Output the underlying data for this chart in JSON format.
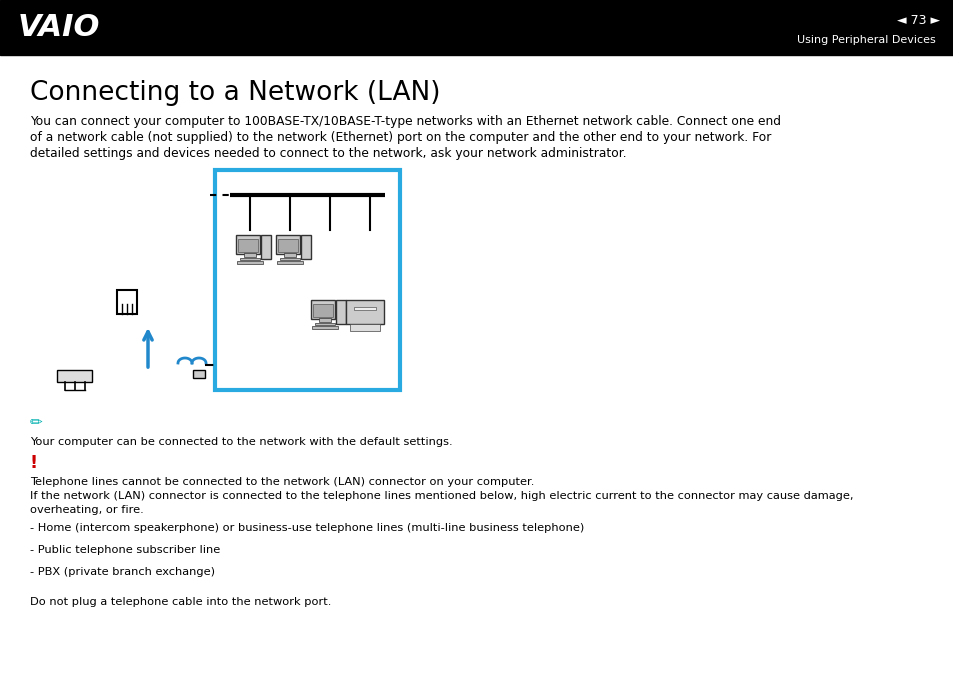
{
  "header_bg": "#000000",
  "header_text_color": "#ffffff",
  "page_bg": "#ffffff",
  "header_page": "73",
  "header_section": "Using Peripheral Devices",
  "title": "Connecting to a Network (LAN)",
  "title_fontsize": 19,
  "body_fontsize": 8.8,
  "small_fontsize": 8.2,
  "body_text_line1": "You can connect your computer to 100BASE-TX/10BASE-T-type networks with an Ethernet network cable. Connect one end",
  "body_text_line2": "of a network cable (not supplied) to the network (Ethernet) port on the computer and the other end to your network. For",
  "body_text_line3": "detailed settings and devices needed to connect to the network, ask your network administrator.",
  "diagram_box_color": "#29abe2",
  "note_color": "#00b0b0",
  "note_text": "Your computer can be connected to the network with the default settings.",
  "warning_color": "#cc0000",
  "warning_line1": "Telephone lines cannot be connected to the network (LAN) connector on your computer.",
  "warning_line2": "If the network (LAN) connector is connected to the telephone lines mentioned below, high electric current to the connector may cause damage,",
  "warning_line3": "overheating, or fire.",
  "bullet1": "- Home (intercom speakerphone) or business-use telephone lines (multi-line business telephone)",
  "bullet2": "- Public telephone subscriber line",
  "bullet3": "- PBX (private branch exchange)",
  "final_text": "Do not plug a telephone cable into the network port."
}
